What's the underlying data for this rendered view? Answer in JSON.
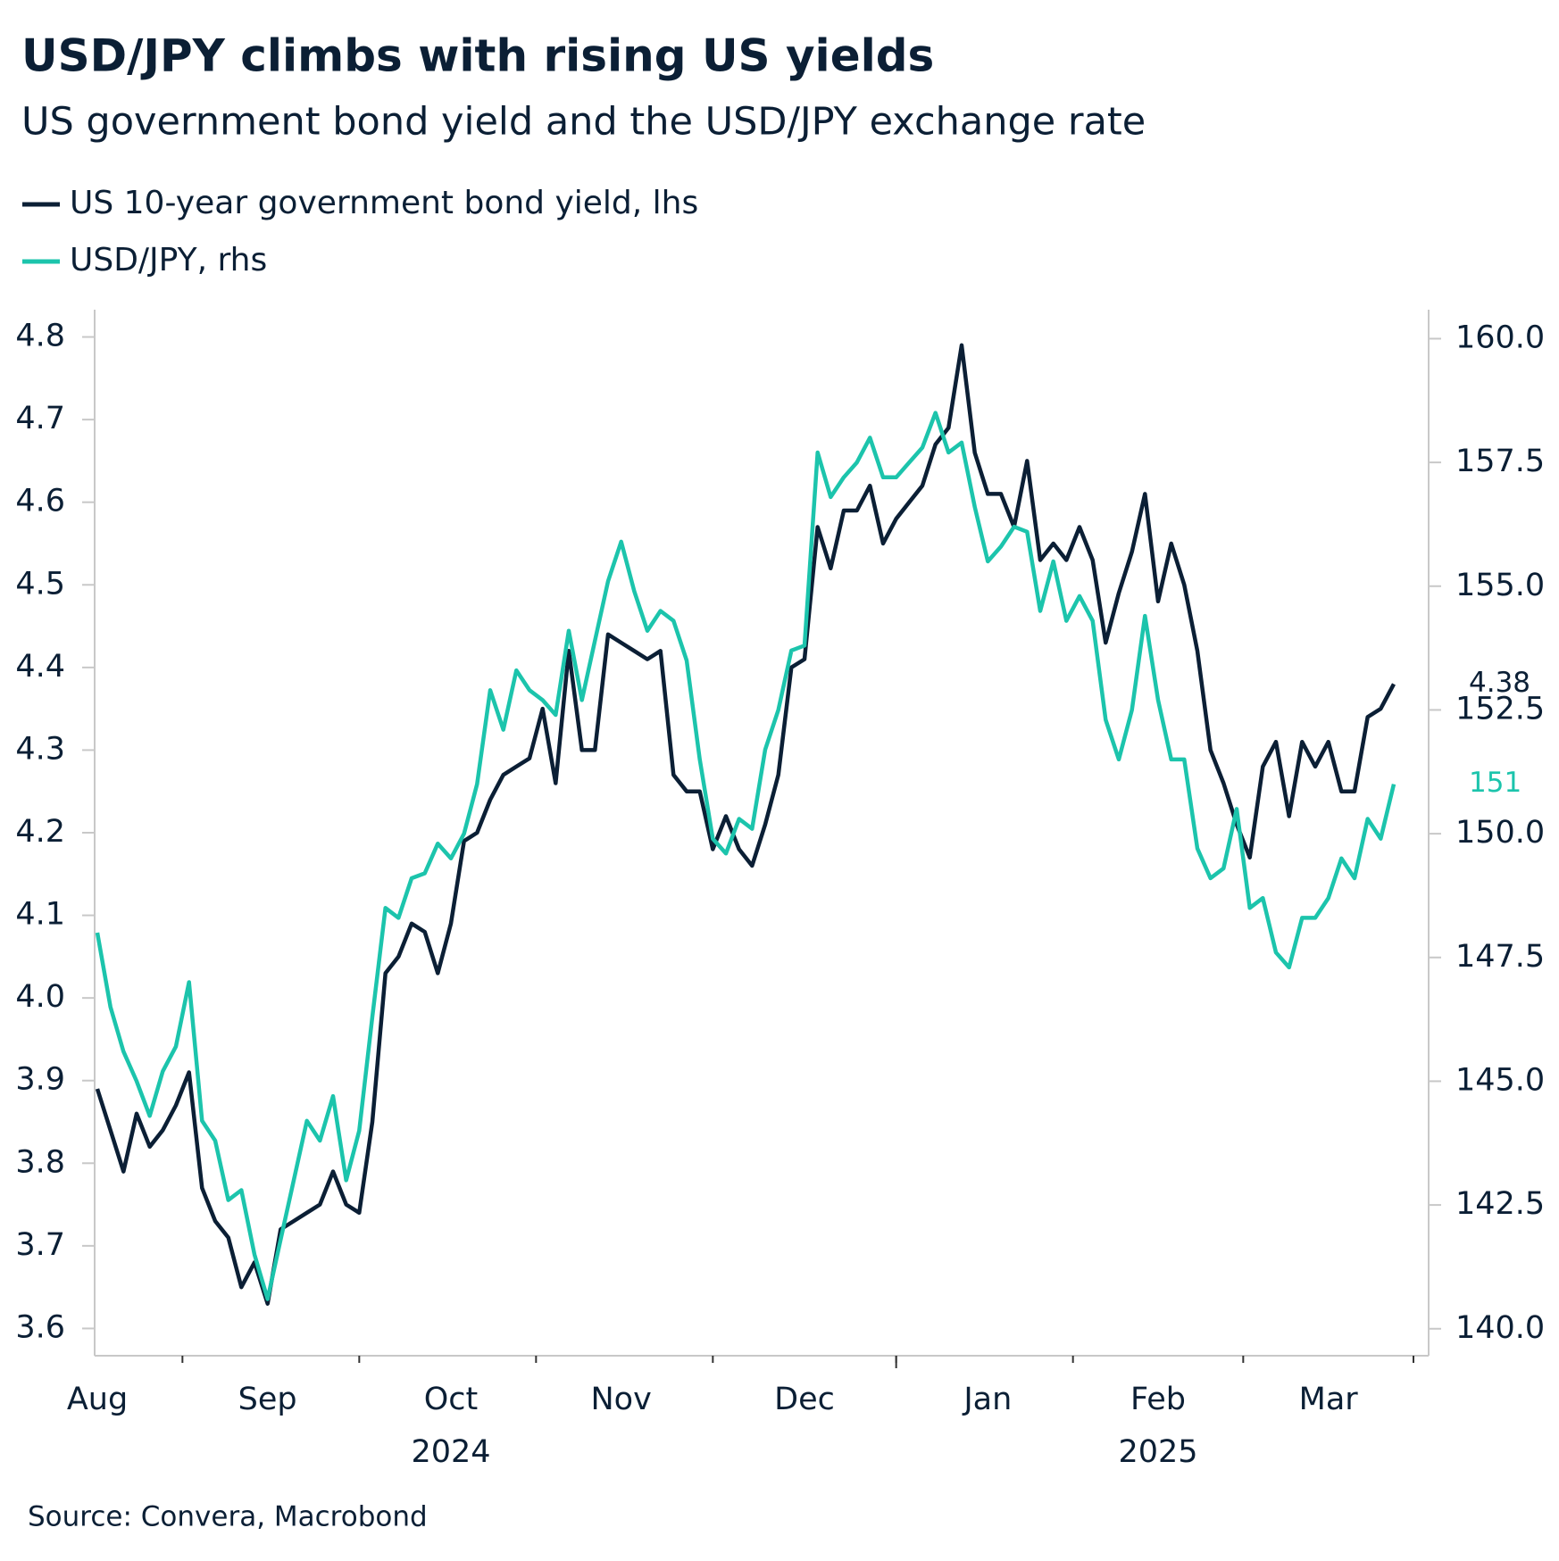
{
  "chart_data": {
    "type": "line",
    "title": "USD/JPY climbs with rising US yields",
    "subtitle": "US government bond yield and the USD/JPY exchange rate",
    "source": "Source: Convera, Macrobond",
    "categories": [
      "Aug",
      null,
      null,
      null,
      null,
      null,
      null,
      null,
      null,
      null,
      null,
      null,
      null,
      "Sep",
      null,
      null,
      null,
      null,
      null,
      null,
      null,
      null,
      null,
      null,
      null,
      null,
      null,
      "Oct",
      null,
      null,
      null,
      null,
      null,
      null,
      null,
      null,
      null,
      null,
      null,
      null,
      "Nov",
      null,
      null,
      null,
      null,
      null,
      null,
      null,
      null,
      null,
      null,
      null,
      null,
      null,
      "Dec",
      null,
      null,
      null,
      null,
      null,
      null,
      null,
      null,
      null,
      null,
      null,
      null,
      null,
      "Jan",
      null,
      null,
      null,
      null,
      null,
      null,
      null,
      null,
      null,
      null,
      null,
      null,
      "Feb",
      null,
      null,
      null,
      null,
      null,
      null,
      null,
      null,
      null,
      null,
      null,
      null,
      "Mar",
      null,
      null,
      null,
      null,
      null
    ],
    "year_groups": [
      {
        "label": "2024",
        "months": [
          "Aug",
          "Sep",
          "Oct",
          "Nov",
          "Dec"
        ]
      },
      {
        "label": "2025",
        "months": [
          "Jan",
          "Feb",
          "Mar"
        ]
      }
    ],
    "series": [
      {
        "name": "US 10-year government bond yield, lhs",
        "color": "#0b1f35",
        "axis": "y",
        "end_label": "4.38",
        "values": [
          3.89,
          3.84,
          3.79,
          3.86,
          3.82,
          3.84,
          3.87,
          3.91,
          3.77,
          3.73,
          3.71,
          3.65,
          3.68,
          3.63,
          3.72,
          3.73,
          3.74,
          3.75,
          3.79,
          3.75,
          3.74,
          3.85,
          4.03,
          4.05,
          4.09,
          4.08,
          4.03,
          4.09,
          4.19,
          4.2,
          4.24,
          4.27,
          4.28,
          4.29,
          4.35,
          4.26,
          4.42,
          4.3,
          4.3,
          4.44,
          4.43,
          4.42,
          4.41,
          4.42,
          4.27,
          4.25,
          4.25,
          4.18,
          4.22,
          4.18,
          4.16,
          4.21,
          4.27,
          4.4,
          4.41,
          4.57,
          4.52,
          4.59,
          4.59,
          4.62,
          4.55,
          4.58,
          4.6,
          4.62,
          4.67,
          4.69,
          4.79,
          4.66,
          4.61,
          4.61,
          4.57,
          4.65,
          4.53,
          4.55,
          4.53,
          4.57,
          4.53,
          4.43,
          4.49,
          4.54,
          4.61,
          4.48,
          4.55,
          4.5,
          4.42,
          4.3,
          4.26,
          4.21,
          4.17,
          4.28,
          4.31,
          4.22,
          4.31,
          4.28,
          4.31,
          4.25,
          4.25,
          4.34,
          4.35,
          4.38
        ]
      },
      {
        "name": "USD/JPY, rhs",
        "color": "#1cc4ac",
        "axis": "y2",
        "end_label": "151",
        "values": [
          148.0,
          146.5,
          145.6,
          145.0,
          144.3,
          145.2,
          145.7,
          147.0,
          144.2,
          143.8,
          142.6,
          142.8,
          141.5,
          140.6,
          141.8,
          143.0,
          144.2,
          143.8,
          144.7,
          143.0,
          144.0,
          146.3,
          148.5,
          148.3,
          149.1,
          149.2,
          149.8,
          149.5,
          150.0,
          151.0,
          152.9,
          152.1,
          153.3,
          152.9,
          152.7,
          152.4,
          154.1,
          152.7,
          153.9,
          155.1,
          155.9,
          154.9,
          154.1,
          154.5,
          154.3,
          153.5,
          151.5,
          149.9,
          149.6,
          150.3,
          150.1,
          151.7,
          152.5,
          153.7,
          153.8,
          157.7,
          156.8,
          157.2,
          157.5,
          158.0,
          157.2,
          157.2,
          157.5,
          157.8,
          158.5,
          157.7,
          157.9,
          156.6,
          155.5,
          155.8,
          156.2,
          156.1,
          154.5,
          155.5,
          154.3,
          154.8,
          154.3,
          152.3,
          151.5,
          152.5,
          154.4,
          152.7,
          151.5,
          151.5,
          149.7,
          149.1,
          149.3,
          150.5,
          148.5,
          148.7,
          147.6,
          147.3,
          148.3,
          148.3,
          148.7,
          149.5,
          149.1,
          150.3,
          149.9,
          151.0
        ]
      }
    ],
    "ylim": [
      3.567,
      4.833
    ],
    "yticks": [
      3.6,
      3.7,
      3.8,
      3.9,
      {
        "value": 4,
        "label": "4.0"
      },
      4.1,
      4.2,
      4.3,
      4.4,
      4.5,
      4.6,
      4.7,
      4.8
    ],
    "y2lim": [
      139.455,
      160.585
    ],
    "y2ticks": [
      {
        "value": 140,
        "label": "140.0"
      },
      142.5,
      {
        "value": 145,
        "label": "145.0"
      },
      147.5,
      {
        "value": 150,
        "label": "150.0"
      },
      152.5,
      {
        "value": 155,
        "label": "155.0"
      },
      157.5,
      {
        "value": 160,
        "label": "160.0"
      }
    ],
    "grid": false
  }
}
